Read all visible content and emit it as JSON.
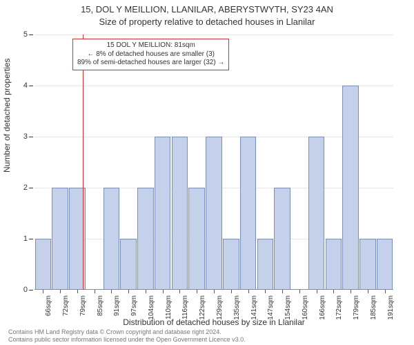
{
  "title_line1": "15, DOL Y MEILLION, LLANILAR, ABERYSTWYTH, SY23 4AN",
  "title_line2": "Size of property relative to detached houses in Llanilar",
  "ylabel": "Number of detached properties",
  "xlabel": "Distribution of detached houses by size in Llanilar",
  "annotation": {
    "line1": "15 DOL Y MEILLION: 81sqm",
    "line2": "← 8% of detached houses are smaller (3)",
    "line3": "89% of semi-detached houses are larger (32) →"
  },
  "indicator_x_value": 81,
  "indicator_color": "#cc3333",
  "footer_line1": "Contains HM Land Registry data © Crown copyright and database right 2024.",
  "footer_line2": "Contains public sector information licensed under the Open Government Licence v3.0.",
  "chart": {
    "type": "histogram",
    "background_color": "#ffffff",
    "bar_fill": "#c5d0eb",
    "bar_border": "#7a8db5",
    "grid_color": "#e6e6e6",
    "axis_color": "#888888",
    "text_color": "#333333",
    "title_fontsize": 13,
    "label_fontsize": 12,
    "tick_fontsize": 10,
    "ylim": [
      0,
      5
    ],
    "ytick_step": 1,
    "x_start": 63,
    "x_bin_width": 6.35,
    "bar_width_ratio": 0.95,
    "categories": [
      "66sqm",
      "72sqm",
      "79sqm",
      "85sqm",
      "91sqm",
      "97sqm",
      "104sqm",
      "110sqm",
      "116sqm",
      "122sqm",
      "129sqm",
      "135sqm",
      "141sqm",
      "147sqm",
      "154sqm",
      "160sqm",
      "166sqm",
      "172sqm",
      "179sqm",
      "185sqm",
      "191sqm"
    ],
    "values": [
      1,
      2,
      2,
      0,
      2,
      1,
      2,
      3,
      3,
      2,
      3,
      1,
      3,
      1,
      2,
      0,
      3,
      1,
      4,
      1,
      1
    ]
  }
}
